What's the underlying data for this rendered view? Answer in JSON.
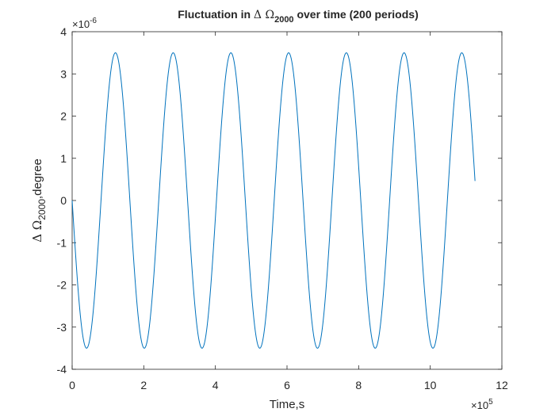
{
  "chart_data": {
    "type": "line",
    "title": {
      "prefix": "Fluctuation in ",
      "symbol": "Δ Ω",
      "subscript": "2000",
      "suffix": " over time (200 periods)"
    },
    "xlabel": "Time,s",
    "ylabel": {
      "symbol": "Δ Ω",
      "subscript": "2000",
      "suffix": ",degree"
    },
    "x_exponent_label": {
      "base": "×10",
      "exp": "5"
    },
    "y_exponent_label": {
      "base": "×10",
      "exp": "-6"
    },
    "xlim": [
      0,
      12
    ],
    "ylim": [
      -4,
      4
    ],
    "x_ticks": [
      0,
      2,
      4,
      6,
      8,
      10,
      12
    ],
    "y_ticks": [
      -4,
      -3,
      -2,
      -1,
      0,
      1,
      2,
      3,
      4
    ],
    "x_tick_labels": [
      "0",
      "2",
      "4",
      "6",
      "8",
      "10",
      "12"
    ],
    "y_tick_labels": [
      "-4",
      "-3",
      "-2",
      "-1",
      "0",
      "1",
      "2",
      "3",
      "4"
    ],
    "x_units": "×10^5 s",
    "y_units": "×10^-6 degree",
    "grid": false,
    "line_color": "#0072BD",
    "series": [
      {
        "function": "y = -3.5*sin(2*pi*x/1.612)",
        "x_range": [
          0,
          11.25
        ],
        "amplitude": 3.5,
        "period": 1.612,
        "phase": "starts at 0 going negative",
        "points": [
          [
            0.0,
            0.0
          ],
          [
            0.403,
            -3.5
          ],
          [
            0.806,
            0.0
          ],
          [
            1.209,
            3.5
          ],
          [
            1.612,
            0.0
          ],
          [
            2.015,
            -3.5
          ],
          [
            2.418,
            0.0
          ],
          [
            2.821,
            3.5
          ],
          [
            3.224,
            0.0
          ],
          [
            3.627,
            -3.5
          ],
          [
            4.03,
            0.0
          ],
          [
            4.433,
            3.5
          ],
          [
            4.836,
            0.0
          ],
          [
            5.239,
            -3.5
          ],
          [
            5.642,
            0.0
          ],
          [
            6.045,
            3.5
          ],
          [
            6.448,
            0.0
          ],
          [
            6.851,
            -3.5
          ],
          [
            7.254,
            0.0
          ],
          [
            7.657,
            3.5
          ],
          [
            8.06,
            0.0
          ],
          [
            8.463,
            -3.5
          ],
          [
            8.866,
            0.0
          ],
          [
            9.269,
            3.5
          ],
          [
            9.672,
            0.0
          ],
          [
            10.075,
            -3.5
          ],
          [
            10.478,
            0.0
          ],
          [
            10.881,
            3.5
          ],
          [
            11.25,
            0.43
          ]
        ]
      }
    ]
  }
}
